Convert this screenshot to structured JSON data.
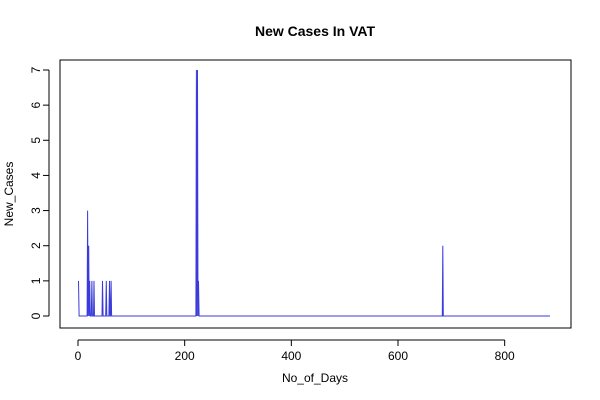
{
  "chart_data": {
    "type": "line",
    "title": "New Cases In VAT",
    "xlabel": "No_of_Days",
    "ylabel": "New_Cases",
    "xlim": [
      0,
      885
    ],
    "ylim": [
      0,
      7
    ],
    "x_ticks": [
      0,
      200,
      400,
      600,
      800
    ],
    "y_ticks": [
      0,
      1,
      2,
      3,
      4,
      5,
      6,
      7
    ],
    "x_tick_labels": [
      "0",
      "200",
      "400",
      "600",
      "800"
    ],
    "y_tick_labels": [
      "0",
      "1",
      "2",
      "3",
      "4",
      "5",
      "6",
      "7"
    ],
    "grid": false,
    "series_color": "#3b3bdb",
    "series": [
      {
        "x": [
          1,
          2,
          17,
          18,
          19,
          20,
          21,
          22,
          23,
          24,
          25,
          26,
          27,
          28,
          29,
          30,
          31,
          32,
          33,
          45,
          46,
          47,
          52,
          53,
          54,
          58,
          59,
          60,
          61,
          62,
          63,
          64,
          221,
          222,
          223,
          224,
          225,
          226,
          227,
          228,
          683,
          684,
          685,
          885
        ],
        "y": [
          1,
          0,
          0,
          3,
          0,
          2,
          0,
          1,
          0,
          0,
          0,
          1,
          0,
          0,
          0,
          1,
          0,
          0,
          0,
          0,
          1,
          0,
          0,
          1,
          0,
          0,
          1,
          0,
          0,
          1,
          0,
          0,
          0,
          7,
          0,
          7,
          0,
          1,
          0,
          0,
          0,
          2,
          0,
          0
        ]
      }
    ]
  }
}
